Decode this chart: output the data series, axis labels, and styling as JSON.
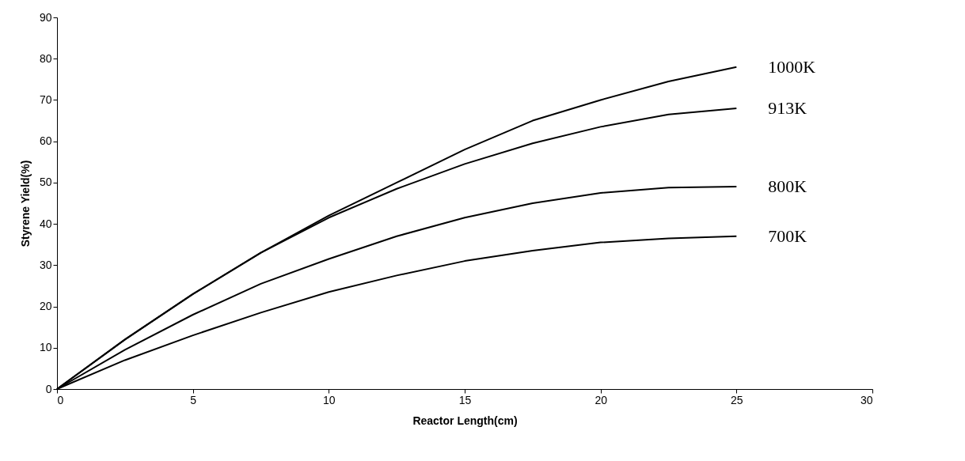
{
  "chart_data": {
    "type": "line",
    "xlabel": "Reactor Length(cm)",
    "ylabel": "Styrene Yield(%)",
    "x": [
      0,
      2.5,
      5,
      7.5,
      10,
      12.5,
      15,
      17.5,
      20,
      22.5,
      25
    ],
    "series": [
      {
        "name": "1000K",
        "color": "#000000",
        "values": [
          0,
          12,
          23,
          33,
          42,
          50,
          58,
          65,
          70,
          74.5,
          78
        ]
      },
      {
        "name": "913K",
        "color": "#000000",
        "values": [
          0,
          12,
          23,
          33,
          41.5,
          48.5,
          54.5,
          59.5,
          63.5,
          66.5,
          68
        ]
      },
      {
        "name": "800K",
        "color": "#000000",
        "values": [
          0,
          9.5,
          18,
          25.5,
          31.5,
          37,
          41.5,
          45,
          47.5,
          48.8,
          49
        ]
      },
      {
        "name": "700K",
        "color": "#000000",
        "values": [
          0,
          7,
          13,
          18.5,
          23.5,
          27.5,
          31,
          33.5,
          35.5,
          36.5,
          37
        ]
      }
    ],
    "xlim": [
      0,
      30
    ],
    "xticks": [
      0,
      5,
      10,
      15,
      20,
      25,
      30
    ],
    "ylim": [
      0,
      90
    ],
    "yticks": [
      0,
      10,
      20,
      30,
      40,
      50,
      60,
      70,
      80,
      90
    ],
    "grid": false,
    "legend": false,
    "marker": "none",
    "line_style": "solid"
  }
}
